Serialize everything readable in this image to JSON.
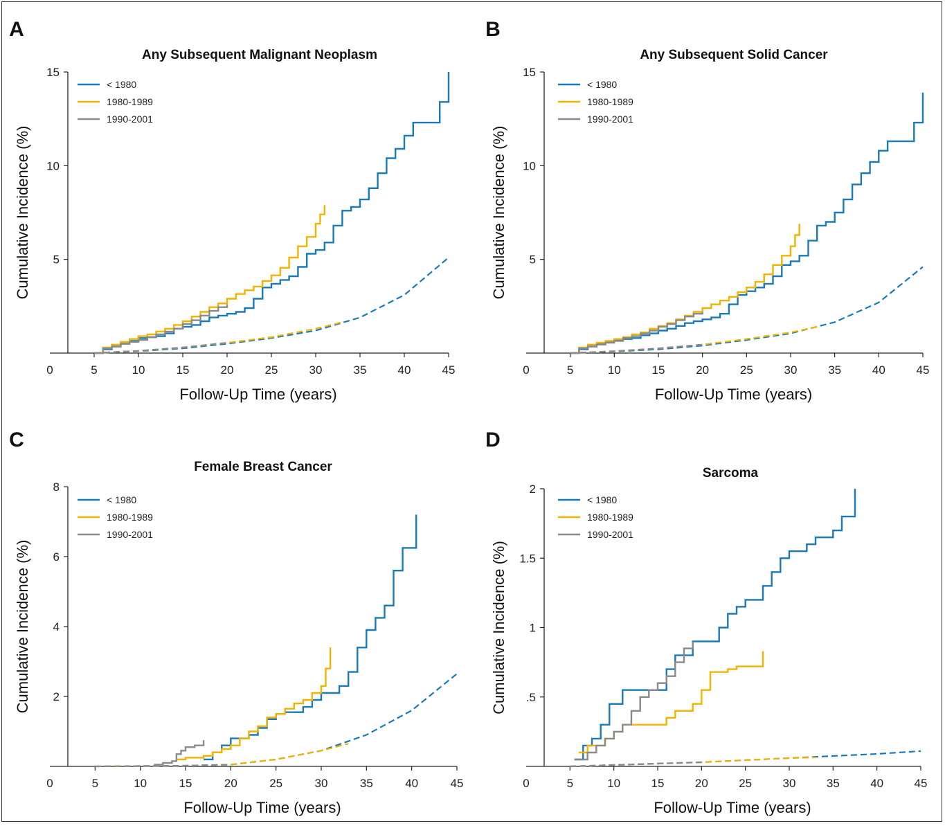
{
  "figure": {
    "colors": {
      "pre1980": "#1a7ab8",
      "y1980s": "#f0b400",
      "y1990s": "#8a8a8a",
      "axis": "#222222"
    }
  },
  "chart_data": [
    {
      "panel": "A",
      "title": "Any Subsequent Malignant Neoplasm",
      "type": "line",
      "xlabel": "Follow-Up Time (years)",
      "ylabel": "Cumulative Incidence (%)",
      "xlim": [
        0,
        45
      ],
      "ylim": [
        0,
        15
      ],
      "xticks": [
        0,
        5,
        10,
        15,
        20,
        25,
        30,
        35,
        40,
        45
      ],
      "yticks": [
        5,
        10,
        15
      ],
      "ytick_labels": [
        "5",
        "10",
        "15"
      ],
      "legend": {
        "placement": "top-left",
        "entries": [
          "< 1980",
          "1980-1989",
          "1990-2001"
        ]
      },
      "series": [
        {
          "name": "< 1980",
          "color": "#1a7ab8",
          "style": "step",
          "x": [
            5,
            6,
            7,
            8,
            9,
            10,
            11,
            12,
            13,
            14,
            15,
            16,
            17,
            18,
            19,
            20,
            21,
            22,
            23,
            24,
            25,
            26,
            27,
            28,
            29,
            30,
            31,
            32,
            33,
            34,
            35,
            36,
            37,
            38,
            39,
            40,
            41,
            42,
            43,
            44,
            45
          ],
          "y": [
            0,
            0.2,
            0.35,
            0.5,
            0.65,
            0.8,
            0.85,
            0.9,
            1.05,
            1.3,
            1.4,
            1.5,
            1.7,
            1.9,
            2.0,
            2.1,
            2.2,
            2.4,
            2.9,
            3.5,
            3.7,
            3.9,
            4.1,
            4.6,
            5.3,
            5.5,
            5.9,
            6.8,
            7.6,
            7.8,
            8.2,
            8.8,
            9.6,
            10.4,
            10.9,
            11.6,
            12.3,
            12.3,
            12.3,
            13.4,
            15.0
          ]
        },
        {
          "name": "1980-1989",
          "color": "#f0b400",
          "style": "step",
          "x": [
            5,
            6,
            7,
            8,
            9,
            10,
            11,
            12,
            13,
            14,
            15,
            16,
            17,
            18,
            19,
            20,
            21,
            22,
            23,
            24,
            25,
            26,
            27,
            28,
            29,
            30,
            30.5,
            31
          ],
          "y": [
            0,
            0.3,
            0.45,
            0.6,
            0.75,
            0.9,
            1.0,
            1.15,
            1.3,
            1.5,
            1.7,
            1.95,
            2.2,
            2.45,
            2.65,
            2.9,
            3.15,
            3.35,
            3.55,
            3.85,
            4.15,
            4.55,
            5.1,
            5.7,
            6.2,
            6.9,
            7.4,
            7.9
          ]
        },
        {
          "name": "1990-2001",
          "color": "#8a8a8a",
          "style": "step",
          "x": [
            5,
            6,
            7,
            8,
            9,
            10,
            11,
            12,
            13,
            14,
            15,
            16,
            17,
            18,
            19,
            20
          ],
          "y": [
            0,
            0.25,
            0.35,
            0.5,
            0.6,
            0.7,
            0.85,
            1.0,
            1.15,
            1.3,
            1.55,
            1.75,
            2.0,
            2.25,
            2.45,
            2.6
          ]
        },
        {
          "name": "",
          "color": "#1a7ab8",
          "style": "dashed",
          "x": [
            5,
            10,
            15,
            20,
            25,
            30,
            35,
            40,
            45
          ],
          "y": [
            0,
            0.1,
            0.25,
            0.5,
            0.8,
            1.2,
            1.9,
            3.1,
            5.1
          ]
        },
        {
          "name": "",
          "color": "#f0b400",
          "style": "dashed",
          "x": [
            5,
            10,
            15,
            20,
            25,
            30,
            33
          ],
          "y": [
            0,
            0.12,
            0.3,
            0.55,
            0.85,
            1.3,
            1.65
          ]
        },
        {
          "name": "",
          "color": "#8a8a8a",
          "style": "dashed",
          "x": [
            5,
            10,
            15,
            20
          ],
          "y": [
            0,
            0.12,
            0.3,
            0.55
          ]
        }
      ]
    },
    {
      "panel": "B",
      "title": "Any Subsequent Solid Cancer",
      "type": "line",
      "xlabel": "Follow-Up Time (years)",
      "ylabel": "Cumulative Incidence (%)",
      "xlim": [
        0,
        45
      ],
      "ylim": [
        0,
        15
      ],
      "xticks": [
        0,
        5,
        10,
        15,
        20,
        25,
        30,
        35,
        40,
        45
      ],
      "yticks": [
        5,
        10,
        15
      ],
      "ytick_labels": [
        "5",
        "10",
        "15"
      ],
      "legend": {
        "placement": "top-left",
        "entries": [
          "< 1980",
          "1980-1989",
          "1990-2001"
        ]
      },
      "series": [
        {
          "name": "< 1980",
          "color": "#1a7ab8",
          "style": "step",
          "x": [
            5,
            6,
            7,
            8,
            9,
            10,
            11,
            12,
            13,
            14,
            15,
            16,
            17,
            18,
            19,
            20,
            21,
            22,
            23,
            24,
            25,
            26,
            27,
            28,
            29,
            30,
            31,
            32,
            33,
            34,
            35,
            36,
            37,
            38,
            39,
            40,
            41,
            42,
            43,
            44,
            45
          ],
          "y": [
            0,
            0.2,
            0.35,
            0.5,
            0.6,
            0.7,
            0.75,
            0.8,
            0.95,
            1.05,
            1.2,
            1.3,
            1.45,
            1.6,
            1.7,
            1.8,
            1.9,
            2.1,
            2.6,
            3.1,
            3.3,
            3.5,
            3.7,
            4.1,
            4.7,
            4.9,
            5.2,
            6.0,
            6.8,
            7.0,
            7.5,
            8.2,
            9.0,
            9.6,
            10.2,
            10.8,
            11.3,
            11.3,
            11.3,
            12.3,
            13.9
          ]
        },
        {
          "name": "1980-1989",
          "color": "#f0b400",
          "style": "step",
          "x": [
            5,
            6,
            7,
            8,
            9,
            10,
            11,
            12,
            13,
            14,
            15,
            16,
            17,
            18,
            19,
            20,
            21,
            22,
            23,
            24,
            25,
            26,
            27,
            28,
            29,
            30,
            30.5,
            31
          ],
          "y": [
            0,
            0.3,
            0.45,
            0.55,
            0.65,
            0.75,
            0.85,
            1.0,
            1.1,
            1.3,
            1.45,
            1.6,
            1.8,
            2.0,
            2.2,
            2.4,
            2.6,
            2.8,
            3.0,
            3.25,
            3.5,
            3.8,
            4.2,
            4.7,
            5.2,
            5.7,
            6.3,
            6.9
          ]
        },
        {
          "name": "1990-2001",
          "color": "#8a8a8a",
          "style": "step",
          "x": [
            5,
            6,
            7,
            8,
            9,
            10,
            11,
            12,
            13,
            14,
            15,
            16,
            17,
            18,
            19,
            20
          ],
          "y": [
            0,
            0.25,
            0.35,
            0.45,
            0.55,
            0.65,
            0.8,
            0.9,
            1.05,
            1.2,
            1.4,
            1.55,
            1.75,
            1.95,
            2.1,
            2.2
          ]
        },
        {
          "name": "",
          "color": "#1a7ab8",
          "style": "dashed",
          "x": [
            5,
            10,
            15,
            20,
            25,
            30,
            35,
            40,
            45
          ],
          "y": [
            0,
            0.08,
            0.2,
            0.4,
            0.7,
            1.05,
            1.65,
            2.7,
            4.6
          ]
        },
        {
          "name": "",
          "color": "#f0b400",
          "style": "dashed",
          "x": [
            5,
            10,
            15,
            20,
            25,
            30,
            33
          ],
          "y": [
            0,
            0.1,
            0.25,
            0.45,
            0.75,
            1.1,
            1.4
          ]
        },
        {
          "name": "",
          "color": "#8a8a8a",
          "style": "dashed",
          "x": [
            5,
            10,
            15,
            20
          ],
          "y": [
            0,
            0.1,
            0.25,
            0.45
          ]
        }
      ]
    },
    {
      "panel": "C",
      "title": "Female Breast Cancer",
      "type": "line",
      "xlabel": "Follow-Up Time (years)",
      "ylabel": "Cumulative Incidence (%)",
      "xlim": [
        0,
        45
      ],
      "ylim": [
        0,
        8
      ],
      "xticks": [
        0,
        5,
        10,
        15,
        20,
        25,
        30,
        35,
        40,
        45
      ],
      "yticks": [
        2,
        4,
        6,
        8
      ],
      "ytick_labels": [
        "2",
        "4",
        "6",
        "8"
      ],
      "legend": {
        "placement": "top-left",
        "entries": [
          "< 1980",
          "1980-1989",
          "1990-2001"
        ]
      },
      "series": [
        {
          "name": "< 1980",
          "color": "#1a7ab8",
          "style": "step",
          "x": [
            17,
            18,
            19,
            20,
            21,
            22,
            23,
            24,
            25,
            26,
            27,
            28,
            29,
            30,
            31,
            32,
            33,
            34,
            35,
            36,
            37,
            38,
            39,
            40,
            40.5
          ],
          "y": [
            0.2,
            0.4,
            0.6,
            0.8,
            0.8,
            0.9,
            1.1,
            1.35,
            1.5,
            1.55,
            1.55,
            1.7,
            1.9,
            2.1,
            2.1,
            2.3,
            2.7,
            3.4,
            3.9,
            4.25,
            4.6,
            5.6,
            6.25,
            6.25,
            7.2
          ]
        },
        {
          "name": "1980-1989",
          "color": "#f0b400",
          "style": "step",
          "x": [
            14,
            15,
            16,
            17,
            18,
            19,
            20,
            21,
            22,
            23,
            24,
            25,
            26,
            27,
            28,
            29,
            30,
            30.5,
            31
          ],
          "y": [
            0.2,
            0.25,
            0.25,
            0.3,
            0.4,
            0.5,
            0.6,
            0.8,
            1.0,
            1.15,
            1.4,
            1.5,
            1.65,
            1.8,
            1.9,
            2.1,
            2.3,
            2.8,
            3.4
          ]
        },
        {
          "name": "1990-2001",
          "color": "#8a8a8a",
          "style": "step",
          "x": [
            11.5,
            12.5,
            13.5,
            14,
            14.5,
            15,
            16,
            17
          ],
          "y": [
            0.05,
            0.1,
            0.15,
            0.35,
            0.45,
            0.55,
            0.6,
            0.75
          ]
        },
        {
          "name": "",
          "color": "#1a7ab8",
          "style": "dashed",
          "x": [
            5,
            10,
            15,
            20,
            25,
            30,
            35,
            40,
            45
          ],
          "y": [
            0,
            0.01,
            0.02,
            0.05,
            0.2,
            0.45,
            0.9,
            1.6,
            2.65
          ]
        },
        {
          "name": "",
          "color": "#f0b400",
          "style": "dashed",
          "x": [
            5,
            10,
            15,
            20,
            25,
            30,
            33
          ],
          "y": [
            0,
            0.01,
            0.02,
            0.05,
            0.2,
            0.45,
            0.65
          ]
        },
        {
          "name": "",
          "color": "#8a8a8a",
          "style": "dashed",
          "x": [
            5,
            10,
            15,
            20
          ],
          "y": [
            0,
            0.01,
            0.02,
            0.05
          ]
        }
      ]
    },
    {
      "panel": "D",
      "title": "Sarcoma",
      "type": "line",
      "xlabel": "Follow-Up Time (years)",
      "ylabel": "Cumulative Incidence (%)",
      "xlim": [
        0,
        45
      ],
      "ylim": [
        0,
        2
      ],
      "xticks": [
        0,
        5,
        10,
        15,
        20,
        25,
        30,
        35,
        40,
        45
      ],
      "yticks": [
        0.5,
        1,
        1.5,
        2
      ],
      "ytick_labels": [
        ".5",
        "1",
        "1.5",
        "2"
      ],
      "legend": {
        "placement": "top-left",
        "entries": [
          "< 1980",
          "1980-1989",
          "1990-2001"
        ]
      },
      "series": [
        {
          "name": "< 1980",
          "color": "#1a7ab8",
          "style": "step",
          "x": [
            5.5,
            6.5,
            7.5,
            8.5,
            9.5,
            11,
            15,
            16,
            17,
            18,
            19,
            20,
            21,
            22,
            23,
            24,
            25,
            26,
            27,
            28,
            29,
            30,
            31,
            32,
            33,
            34,
            35,
            36,
            37,
            37.5
          ],
          "y": [
            0.05,
            0.15,
            0.2,
            0.3,
            0.45,
            0.55,
            0.55,
            0.7,
            0.8,
            0.8,
            0.9,
            0.9,
            0.9,
            1.0,
            1.1,
            1.15,
            1.2,
            1.2,
            1.3,
            1.4,
            1.5,
            1.55,
            1.55,
            1.6,
            1.65,
            1.65,
            1.7,
            1.8,
            1.8,
            2.0
          ]
        },
        {
          "name": "1980-1989",
          "color": "#f0b400",
          "style": "step",
          "x": [
            6,
            7,
            8,
            9,
            10,
            11,
            12,
            13,
            14,
            15,
            16,
            17,
            18,
            19,
            20,
            21,
            22,
            23,
            24,
            25,
            26,
            27
          ],
          "y": [
            0.1,
            0.15,
            0.15,
            0.2,
            0.25,
            0.3,
            0.3,
            0.3,
            0.3,
            0.3,
            0.35,
            0.4,
            0.4,
            0.45,
            0.55,
            0.68,
            0.68,
            0.7,
            0.72,
            0.72,
            0.72,
            0.83
          ]
        },
        {
          "name": "1990-2001",
          "color": "#8a8a8a",
          "style": "step",
          "x": [
            5.5,
            7,
            8,
            9,
            10,
            11,
            12,
            13,
            14,
            15,
            16,
            17,
            18,
            19
          ],
          "y": [
            0.05,
            0.1,
            0.15,
            0.2,
            0.25,
            0.3,
            0.4,
            0.5,
            0.55,
            0.6,
            0.65,
            0.75,
            0.85,
            0.9
          ]
        },
        {
          "name": "",
          "color": "#1a7ab8",
          "style": "dashed",
          "x": [
            5,
            10,
            15,
            20,
            25,
            30,
            35,
            40,
            45
          ],
          "y": [
            0,
            0.01,
            0.02,
            0.03,
            0.045,
            0.06,
            0.075,
            0.09,
            0.11
          ]
        },
        {
          "name": "",
          "color": "#f0b400",
          "style": "dashed",
          "x": [
            5,
            10,
            15,
            20,
            25,
            30,
            33
          ],
          "y": [
            0,
            0.01,
            0.02,
            0.03,
            0.045,
            0.06,
            0.065
          ]
        },
        {
          "name": "",
          "color": "#8a8a8a",
          "style": "dashed",
          "x": [
            5,
            10,
            15,
            20
          ],
          "y": [
            0,
            0.01,
            0.02,
            0.03
          ]
        }
      ]
    }
  ]
}
